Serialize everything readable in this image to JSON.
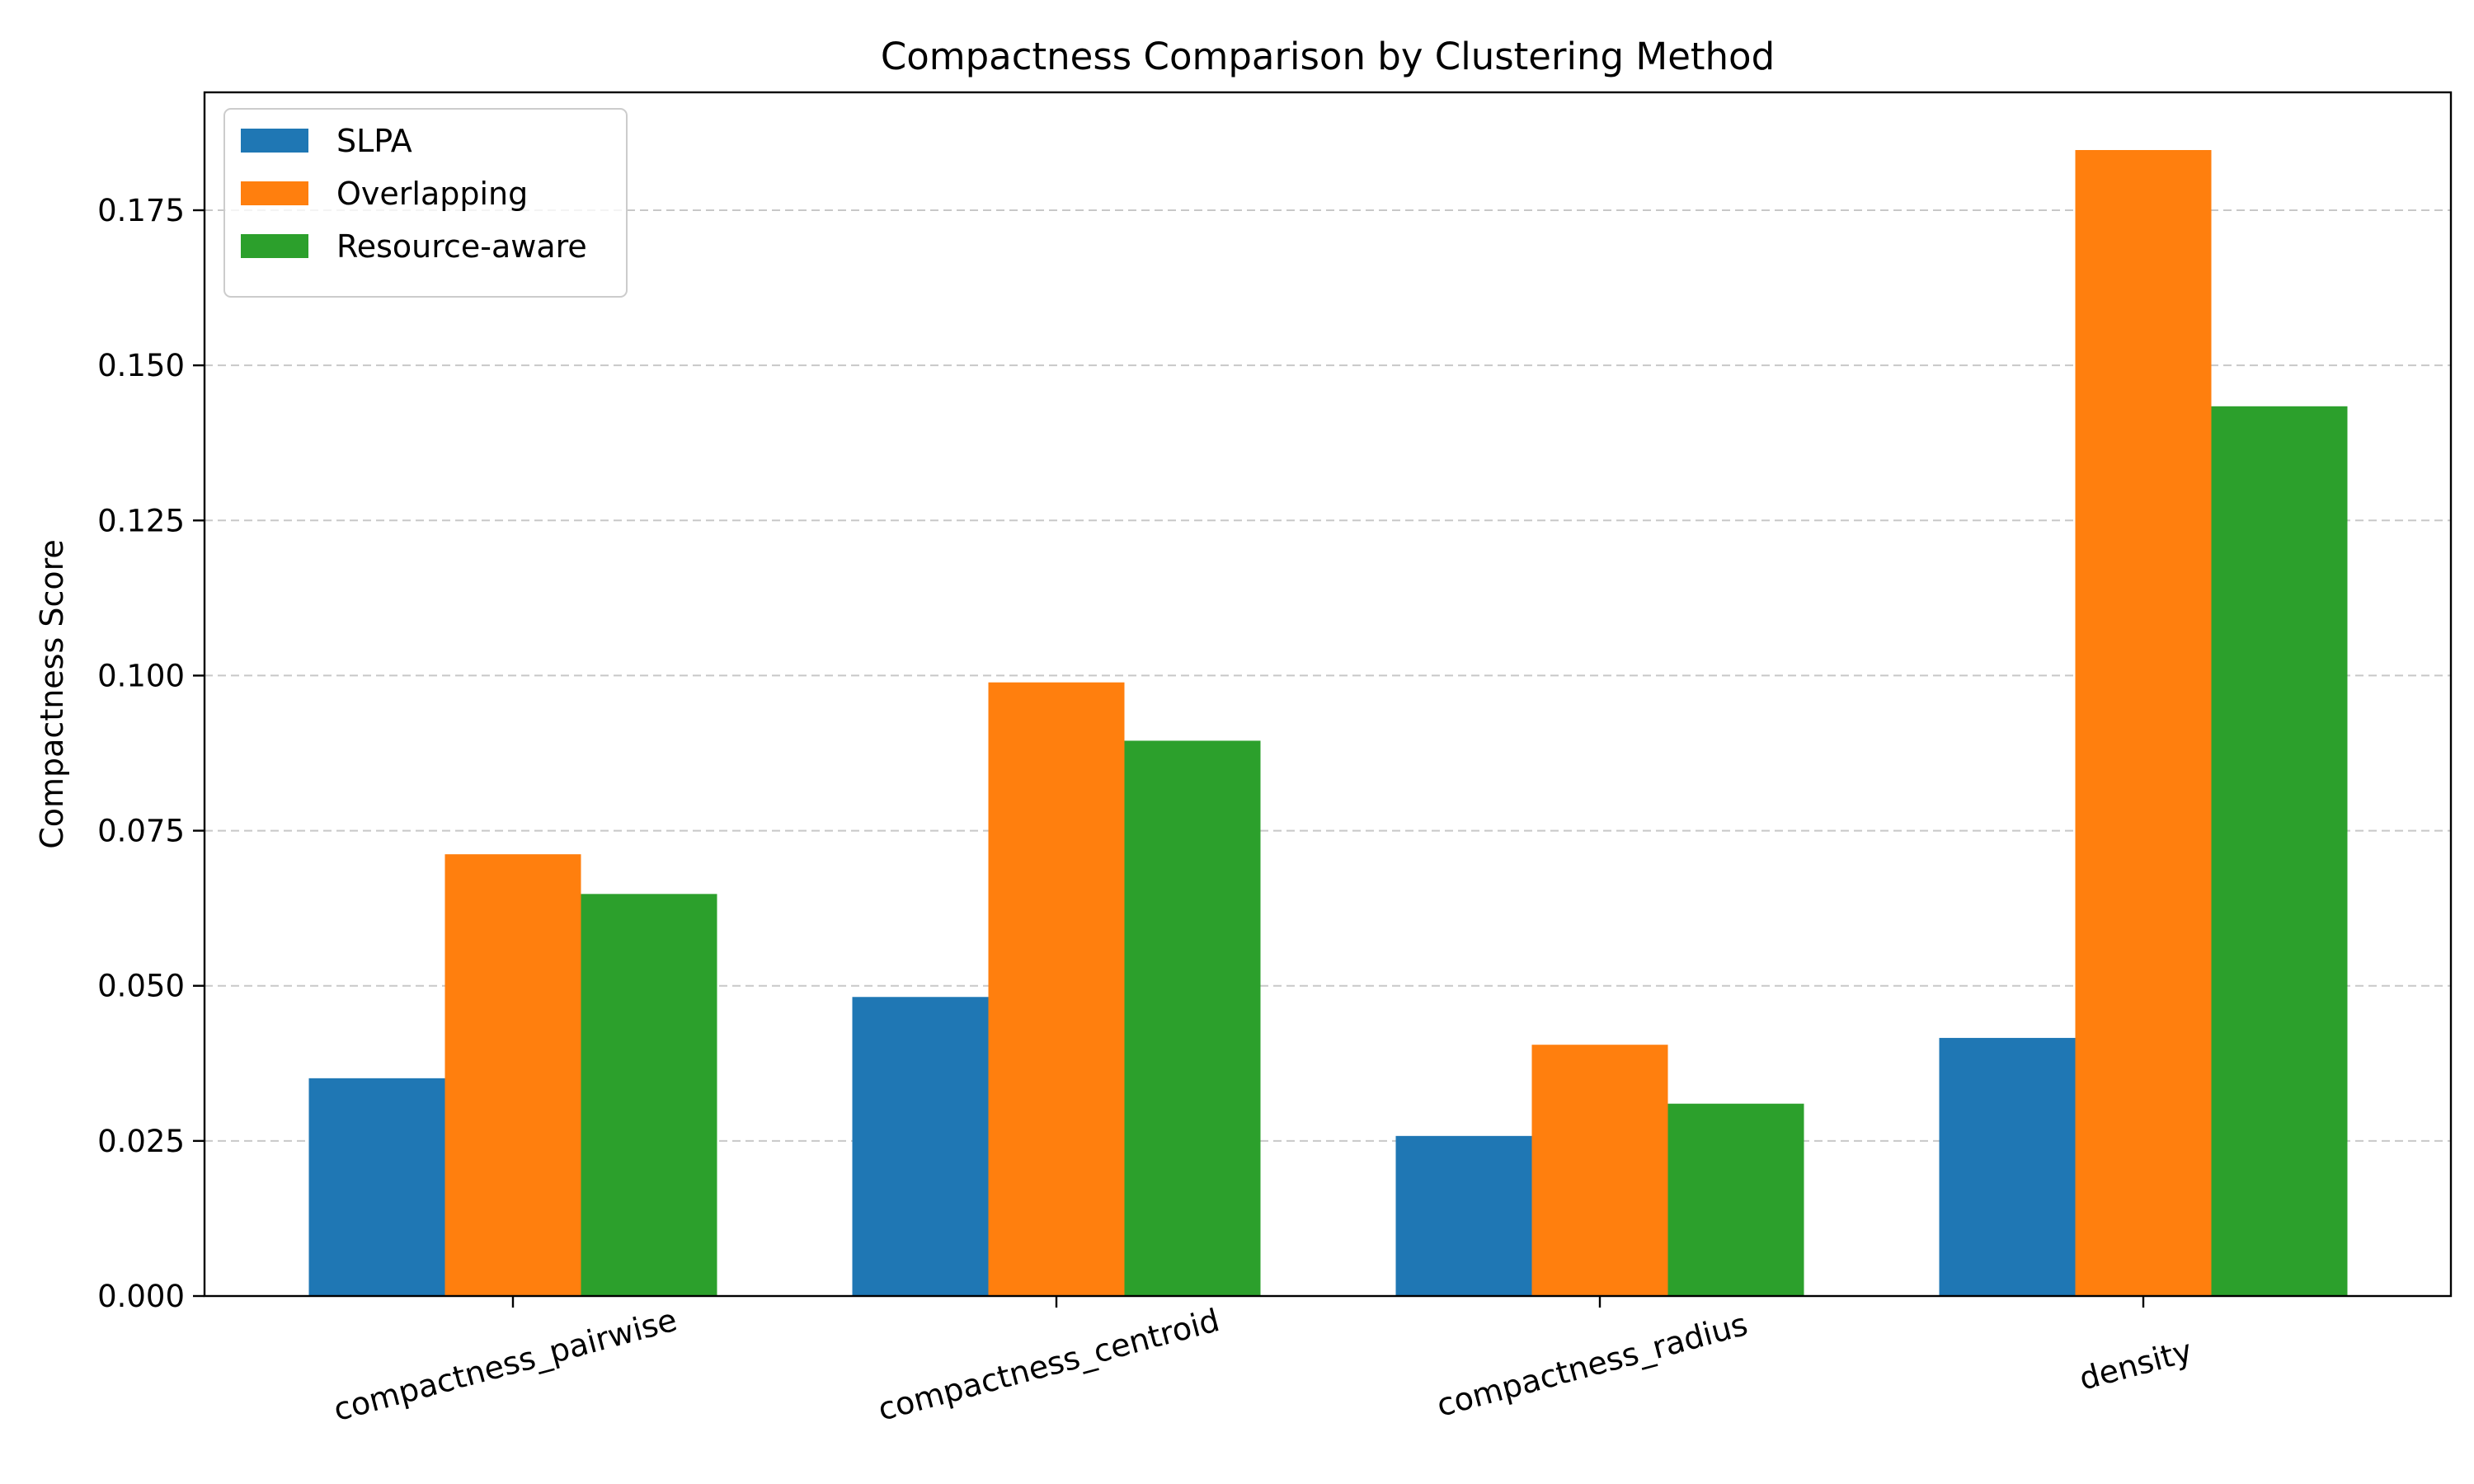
{
  "chart_data": {
    "type": "bar",
    "title": "Compactness Comparison by Clustering Method",
    "xlabel": "",
    "ylabel": "Compactness Score",
    "categories": [
      "compactness_pairwise",
      "compactness_centroid",
      "compactness_radius",
      "density"
    ],
    "series": [
      {
        "name": "SLPA",
        "color": "#1f77b4",
        "values": [
          0.0351,
          0.0482,
          0.0258,
          0.0416
        ]
      },
      {
        "name": "Overlapping",
        "color": "#ff7f0e",
        "values": [
          0.0712,
          0.0989,
          0.0405,
          0.1847
        ]
      },
      {
        "name": "Resource-aware",
        "color": "#2ca02c",
        "values": [
          0.0648,
          0.0895,
          0.031,
          0.1434
        ]
      }
    ],
    "ylim": [
      0,
      0.194
    ],
    "yticks": [
      "0.000",
      "0.025",
      "0.050",
      "0.075",
      "0.100",
      "0.125",
      "0.150",
      "0.175"
    ],
    "grid": "y-dashed",
    "legend": "top-left"
  }
}
